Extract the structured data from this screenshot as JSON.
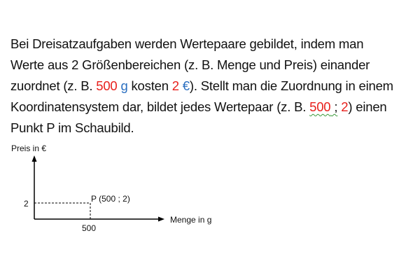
{
  "paragraph": {
    "line1": "Bei Dreisatzaufgaben werden Wertepaare gebildet, indem man",
    "line2": "Werte aus 2 Größenbereichen (z. B. Menge und Preis) einander",
    "line3": {
      "a": "zuordnet (z. B. ",
      "amount": "500",
      "amount_unit": " g",
      "b": " kosten ",
      "price": "2",
      "price_unit": " €",
      "c": "). Stellt man die Zuordnung in einem"
    },
    "line4": {
      "a": "Koordinatensystem dar, bildet jedes Wertepaar (z. B. ",
      "x": "500",
      "sep": " ;",
      "y": " 2",
      "b": ") einen"
    },
    "line5": "Punkt P im Schaubild."
  },
  "colors": {
    "highlight_value": "#e8201c",
    "highlight_unit": "#2a6fc0"
  },
  "diagram": {
    "y_axis_label": "Preis in €",
    "x_axis_label": "Menge in g",
    "y_tick": "2",
    "x_tick": "500",
    "point_label": "P (500 ; 2)"
  }
}
